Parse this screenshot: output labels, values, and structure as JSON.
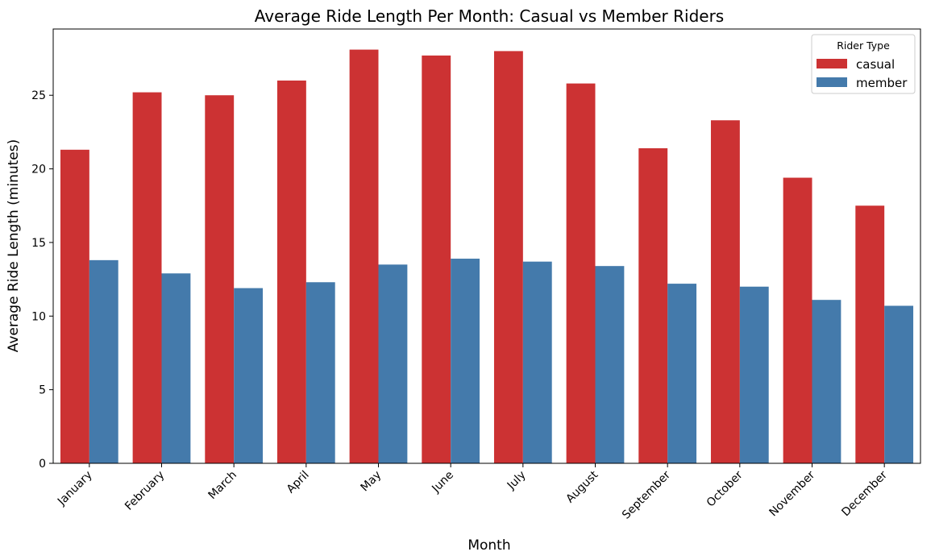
{
  "chart_data": {
    "type": "bar",
    "title": "Average Ride Length Per Month: Casual vs Member Riders",
    "xlabel": "Month",
    "ylabel": "Average Ride Length (minutes)",
    "categories": [
      "January",
      "February",
      "March",
      "April",
      "May",
      "June",
      "July",
      "August",
      "September",
      "October",
      "November",
      "December"
    ],
    "series": [
      {
        "name": "casual",
        "color": "#cc3233",
        "values": [
          21.3,
          25.2,
          25.0,
          26.0,
          28.1,
          27.7,
          28.0,
          25.8,
          21.4,
          23.3,
          19.4,
          17.5
        ]
      },
      {
        "name": "member",
        "color": "#447aab",
        "values": [
          13.8,
          12.9,
          11.9,
          12.3,
          13.5,
          13.9,
          13.7,
          13.4,
          12.2,
          12.0,
          11.1,
          10.7
        ]
      }
    ],
    "ylim": [
      0,
      29.5
    ],
    "yticks": [
      0,
      5,
      10,
      15,
      20,
      25
    ],
    "grid": false,
    "legend": {
      "title": "Rider Type",
      "placement": "top-right"
    }
  }
}
